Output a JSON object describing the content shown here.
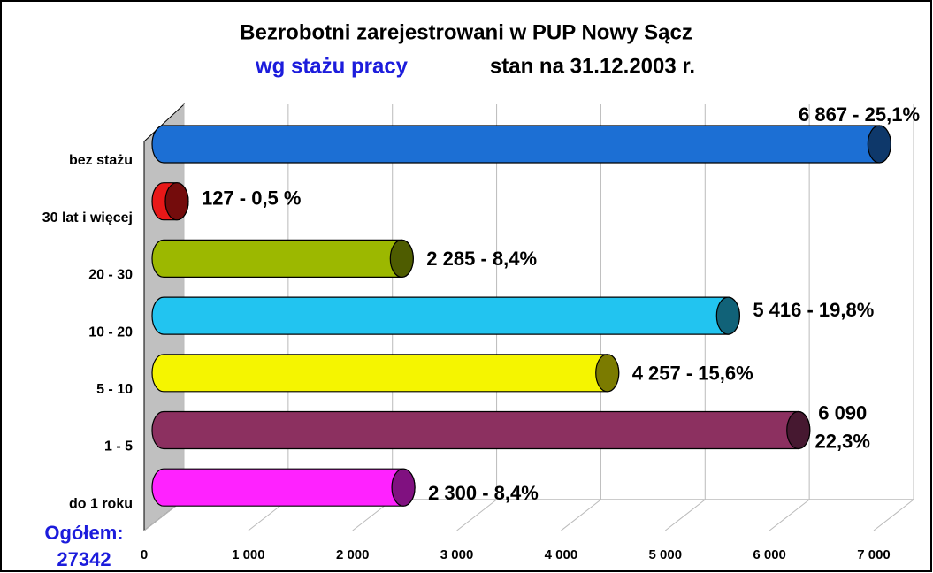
{
  "chart_data": {
    "type": "bar",
    "orientation": "horizontal",
    "title": "Bezrobotni zarejestrowani w PUP Nowy Sącz",
    "subtitle": [
      "wg stażu pracy",
      "stan na 31.12.2003 r."
    ],
    "categories": [
      "bez stażu",
      "30 lat i więcej",
      "20 - 30",
      "10 - 20",
      "5 - 10",
      "1 - 5",
      "do 1 roku"
    ],
    "values": [
      6867,
      127,
      2285,
      5416,
      4257,
      6090,
      2300
    ],
    "value_labels": [
      "6 867 - 25,1%",
      "127 - 0,5 %",
      "2 285 - 8,4%",
      "5 416 - 19,8%",
      "4 257 - 15,6%",
      "6 090\n22,3%",
      "2 300 - 8,4%"
    ],
    "colors": [
      "#1c6fd4",
      "#e81818",
      "#9cb800",
      "#22c4f0",
      "#f5f500",
      "#8c3060",
      "#ff22ff"
    ],
    "xlim": [
      0,
      7000
    ],
    "xticks": [
      0,
      {
        "value": 1000,
        "label": "1 000"
      },
      {
        "value": 2000,
        "label": "2 000"
      },
      {
        "value": 3000,
        "label": "3 000"
      },
      {
        "value": 4000,
        "label": "4 000"
      },
      {
        "value": 5000,
        "label": "5 000"
      },
      {
        "value": 6000,
        "label": "6 000"
      },
      {
        "value": 7000,
        "label": "7 000"
      }
    ],
    "grid": true,
    "annotations": [
      "Ogółem:",
      "27342"
    ]
  }
}
